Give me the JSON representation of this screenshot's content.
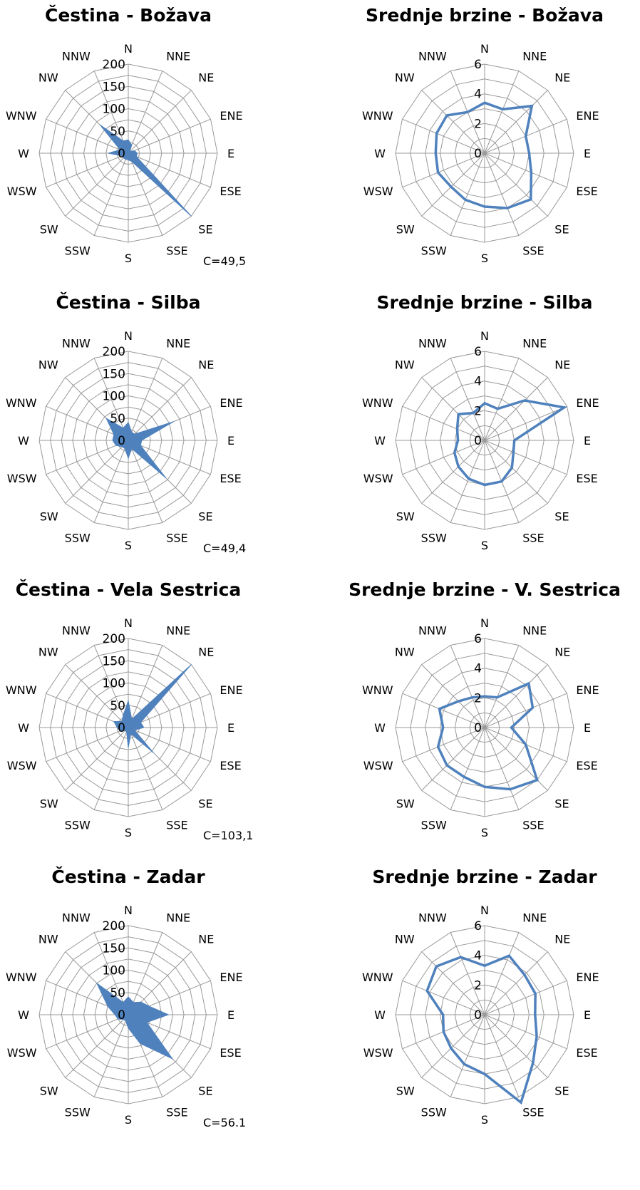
{
  "chart_data": [
    {
      "type": "radar",
      "style": "filled",
      "color": "#4F81BD",
      "title": "Čestina - Božava",
      "categories": [
        "N",
        "NNE",
        "NE",
        "ENE",
        "E",
        "ESE",
        "SE",
        "SSE",
        "S",
        "SSW",
        "SW",
        "WSW",
        "W",
        "WNW",
        "NW",
        "NNW"
      ],
      "values": [
        30,
        20,
        5,
        15,
        20,
        20,
        200,
        20,
        15,
        15,
        15,
        15,
        45,
        20,
        90,
        30
      ],
      "r_ticks": [
        "0",
        "50",
        "100",
        "150",
        "200"
      ],
      "rlim": [
        0,
        200
      ],
      "calm": "C=49,5"
    },
    {
      "type": "radar",
      "style": "line",
      "color": "#4F81BD",
      "title": "Srednje brzine - Božava",
      "categories": [
        "N",
        "NNE",
        "NE",
        "ENE",
        "E",
        "ESE",
        "SE",
        "SSE",
        "S",
        "SSW",
        "SW",
        "WSW",
        "W",
        "WNW",
        "NW",
        "NNW"
      ],
      "values": [
        3.4,
        3.2,
        4.5,
        3.0,
        3.0,
        3.4,
        4.4,
        4.0,
        3.6,
        3.4,
        3.2,
        3.4,
        3.3,
        3.5,
        3.6,
        3.0
      ],
      "r_ticks": [
        "0",
        "2",
        "4",
        "6"
      ],
      "rlim": [
        0,
        6
      ]
    },
    {
      "type": "radar",
      "style": "filled",
      "color": "#4F81BD",
      "title": "Čestina - Silba",
      "categories": [
        "N",
        "NNE",
        "NE",
        "ENE",
        "E",
        "ESE",
        "SE",
        "SSE",
        "S",
        "SSW",
        "SW",
        "WSW",
        "W",
        "WNW",
        "NW",
        "NNW"
      ],
      "values": [
        40,
        20,
        20,
        110,
        30,
        30,
        120,
        20,
        40,
        20,
        20,
        30,
        35,
        35,
        70,
        30
      ],
      "r_ticks": [
        "0",
        "50",
        "100",
        "150",
        "200"
      ],
      "rlim": [
        0,
        200
      ],
      "calm": "C=49,4"
    },
    {
      "type": "radar",
      "style": "line",
      "color": "#4F81BD",
      "title": "Srednje brzine - Silba",
      "categories": [
        "N",
        "NNE",
        "NE",
        "ENE",
        "E",
        "ESE",
        "SE",
        "SSE",
        "S",
        "SSW",
        "SW",
        "WSW",
        "W",
        "WNW",
        "NW",
        "NNW"
      ],
      "values": [
        2.5,
        2.3,
        3.8,
        5.8,
        2.0,
        2.1,
        2.6,
        3.0,
        3.0,
        2.8,
        2.5,
        2.2,
        1.8,
        2.0,
        2.5,
        2.0
      ],
      "r_ticks": [
        "0",
        "2",
        "4",
        "6"
      ],
      "rlim": [
        0,
        6
      ]
    },
    {
      "type": "radar",
      "style": "filled",
      "color": "#4F81BD",
      "title": "Čestina - Vela Sestrica",
      "categories": [
        "N",
        "NNE",
        "NE",
        "ENE",
        "E",
        "ESE",
        "SE",
        "SSE",
        "S",
        "SSW",
        "SW",
        "WSW",
        "W",
        "WNW",
        "NW",
        "NNW"
      ],
      "values": [
        60,
        20,
        200,
        30,
        35,
        15,
        80,
        15,
        45,
        10,
        10,
        20,
        25,
        35,
        20,
        30
      ],
      "r_ticks": [
        "0",
        "50",
        "100",
        "150",
        "200"
      ],
      "rlim": [
        0,
        200
      ],
      "calm": "C=103,1"
    },
    {
      "type": "radar",
      "style": "line",
      "color": "#4F81BD",
      "title": "Srednje brzine - V. Sestrica",
      "categories": [
        "N",
        "NNE",
        "NE",
        "ENE",
        "E",
        "ESE",
        "SE",
        "SSE",
        "S",
        "SSW",
        "SW",
        "WSW",
        "W",
        "WNW",
        "NW",
        "NNW"
      ],
      "values": [
        2.1,
        2.2,
        4.2,
        3.5,
        1.8,
        3.0,
        5.0,
        4.5,
        4.0,
        3.6,
        3.6,
        3.4,
        2.8,
        3.3,
        2.5,
        2.2
      ],
      "r_ticks": [
        "0",
        "2",
        "4",
        "6"
      ],
      "rlim": [
        0,
        6
      ]
    },
    {
      "type": "radar",
      "style": "filled",
      "color": "#4F81BD",
      "title": "Čestina - Zadar",
      "categories": [
        "N",
        "NNE",
        "NE",
        "ENE",
        "E",
        "ESE",
        "SE",
        "SSE",
        "S",
        "SSW",
        "SW",
        "WSW",
        "W",
        "WNW",
        "NW",
        "NNW"
      ],
      "values": [
        40,
        30,
        40,
        50,
        90,
        45,
        140,
        70,
        30,
        15,
        15,
        25,
        30,
        50,
        100,
        30
      ],
      "r_ticks": [
        "0",
        "50",
        "100",
        "150",
        "200"
      ],
      "rlim": [
        0,
        200
      ],
      "calm": "C=56.1"
    },
    {
      "type": "radar",
      "style": "line",
      "color": "#4F81BD",
      "title": "Srednje brzine - Zadar",
      "categories": [
        "N",
        "NNE",
        "NE",
        "ENE",
        "E",
        "ESE",
        "SE",
        "SSE",
        "S",
        "SSW",
        "SW",
        "WSW",
        "W",
        "WNW",
        "NW",
        "NNW"
      ],
      "values": [
        3.3,
        4.3,
        3.8,
        3.7,
        3.4,
        3.8,
        4.6,
        6.4,
        4.0,
        3.6,
        3.2,
        3.0,
        2.8,
        4.2,
        4.6,
        4.2
      ],
      "r_ticks": [
        "0",
        "2",
        "4",
        "6"
      ],
      "rlim": [
        0,
        6
      ]
    }
  ]
}
